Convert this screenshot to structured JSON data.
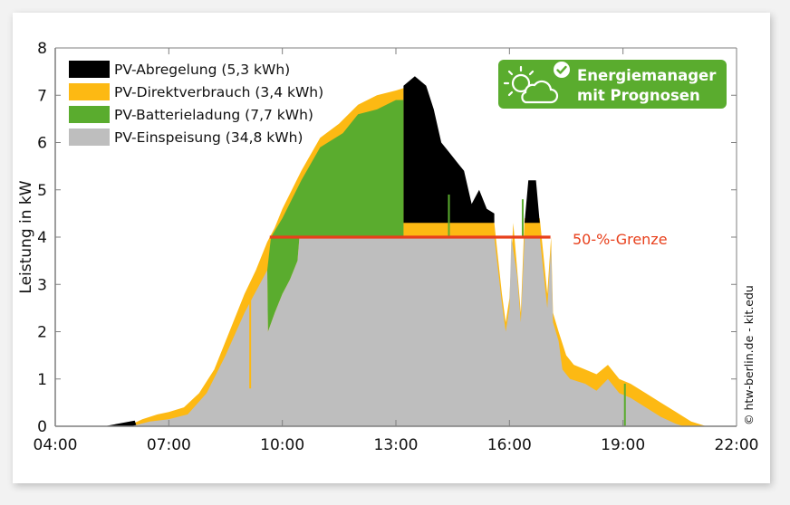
{
  "colors": {
    "abregelung": "#000000",
    "direktverbrauch": "#fdb913",
    "batterieladung": "#5aac2e",
    "einspeisung": "#bebebe",
    "limit_line": "#e8401c",
    "badge_bg": "#5aac2e",
    "axis": "#7f7f7f"
  },
  "badge": {
    "line1": "Energiemanager",
    "line2": "mit Prognosen",
    "icon": "sun-cloud-check-icon"
  },
  "copyright": "© htw-berlin.de - kit.edu",
  "chart_data": {
    "type": "area",
    "title": "",
    "xlabel": "",
    "ylabel": "Leistung in kW",
    "xlim": [
      "04:00",
      "22:00"
    ],
    "ylim": [
      0,
      8
    ],
    "x_ticks": [
      "04:00",
      "07:00",
      "10:00",
      "13:00",
      "16:00",
      "19:00",
      "22:00"
    ],
    "y_ticks": [
      "0",
      "1",
      "2",
      "3",
      "4",
      "5",
      "6",
      "7",
      "8"
    ],
    "grid": false,
    "legend_position": "upper left",
    "stacked": true,
    "legend": [
      {
        "key": "abregelung",
        "label": "PV-Abregelung (5,3 kWh)"
      },
      {
        "key": "direktverbrauch",
        "label": "PV-Direktverbrauch (3,4 kWh)"
      },
      {
        "key": "batterieladung",
        "label": "PV-Batterieladung (7,7 kWh)"
      },
      {
        "key": "einspeisung",
        "label": "PV-Einspeisung (34,8 kWh)"
      }
    ],
    "annotations": [
      {
        "type": "hline",
        "y": 4.0,
        "x_from": "09:40",
        "x_to": "17:05",
        "label": "50-%-Grenze"
      }
    ],
    "series": [
      {
        "name": "PV-Einspeisung",
        "key": "einspeisung",
        "energy_kwh": 34.8,
        "points": [
          [
            6.0,
            0
          ],
          [
            6.5,
            0.1
          ],
          [
            7.0,
            0.15
          ],
          [
            7.5,
            0.25
          ],
          [
            8.0,
            0.7
          ],
          [
            8.5,
            1.5
          ],
          [
            9.0,
            2.4
          ],
          [
            9.2,
            2.7
          ],
          [
            9.4,
            3.0
          ],
          [
            9.6,
            3.3
          ],
          [
            9.62,
            2.0
          ],
          [
            9.8,
            2.4
          ],
          [
            10.0,
            2.8
          ],
          [
            10.2,
            3.1
          ],
          [
            10.4,
            3.5
          ],
          [
            10.45,
            4.0
          ],
          [
            13.2,
            4.0
          ],
          [
            15.6,
            4.0
          ],
          [
            15.8,
            2.6
          ],
          [
            15.9,
            2.0
          ],
          [
            16.0,
            2.5
          ],
          [
            16.05,
            4.0
          ],
          [
            16.2,
            3.2
          ],
          [
            16.3,
            2.2
          ],
          [
            16.4,
            4.0
          ],
          [
            16.6,
            4.0
          ],
          [
            16.8,
            4.0
          ],
          [
            17.0,
            2.5
          ],
          [
            17.1,
            3.8
          ],
          [
            17.15,
            2.2
          ],
          [
            17.3,
            1.8
          ],
          [
            17.4,
            1.2
          ],
          [
            17.6,
            1.0
          ],
          [
            18.0,
            0.9
          ],
          [
            18.3,
            0.75
          ],
          [
            18.6,
            1.0
          ],
          [
            18.9,
            0.7
          ],
          [
            19.2,
            0.6
          ],
          [
            19.6,
            0.4
          ],
          [
            20.0,
            0.2
          ],
          [
            20.4,
            0.05
          ],
          [
            20.6,
            0
          ],
          [
            21.0,
            0
          ]
        ]
      },
      {
        "name": "PV-Batterieladung",
        "key": "batterieladung",
        "energy_kwh": 7.7,
        "points": [
          [
            9.6,
            3.3
          ],
          [
            9.62,
            2.0
          ],
          [
            9.8,
            2.4
          ],
          [
            10.0,
            2.8
          ],
          [
            10.2,
            3.1
          ],
          [
            10.4,
            3.5
          ],
          [
            10.45,
            4.0
          ],
          [
            13.2,
            4.0
          ],
          [
            13.2,
            6.9
          ],
          [
            13.0,
            6.9
          ],
          [
            12.5,
            6.7
          ],
          [
            12.0,
            6.6
          ],
          [
            11.6,
            6.2
          ],
          [
            11.0,
            5.9
          ],
          [
            10.5,
            5.2
          ],
          [
            10.0,
            4.4
          ],
          [
            9.7,
            4.0
          ]
        ]
      },
      {
        "name": "PV-Direktverbrauch",
        "key": "direktverbrauch",
        "energy_kwh": 3.4,
        "band": "top band on total generation (~0.1–0.3 kW), wider in evening"
      },
      {
        "name": "PV-Abregelung",
        "key": "abregelung",
        "energy_kwh": 5.3,
        "points": [
          [
            13.2,
            4.3
          ],
          [
            13.2,
            7.2
          ],
          [
            13.5,
            7.4
          ],
          [
            13.8,
            7.2
          ],
          [
            14.0,
            6.7
          ],
          [
            14.2,
            6.0
          ],
          [
            14.4,
            5.8
          ],
          [
            14.6,
            5.6
          ],
          [
            14.8,
            5.4
          ],
          [
            15.0,
            4.7
          ],
          [
            15.2,
            5.0
          ],
          [
            15.4,
            4.6
          ],
          [
            15.6,
            4.5
          ],
          [
            15.6,
            4.3
          ],
          [
            16.4,
            4.3
          ],
          [
            16.5,
            5.2
          ],
          [
            16.7,
            5.2
          ],
          [
            16.8,
            4.3
          ]
        ]
      }
    ]
  }
}
